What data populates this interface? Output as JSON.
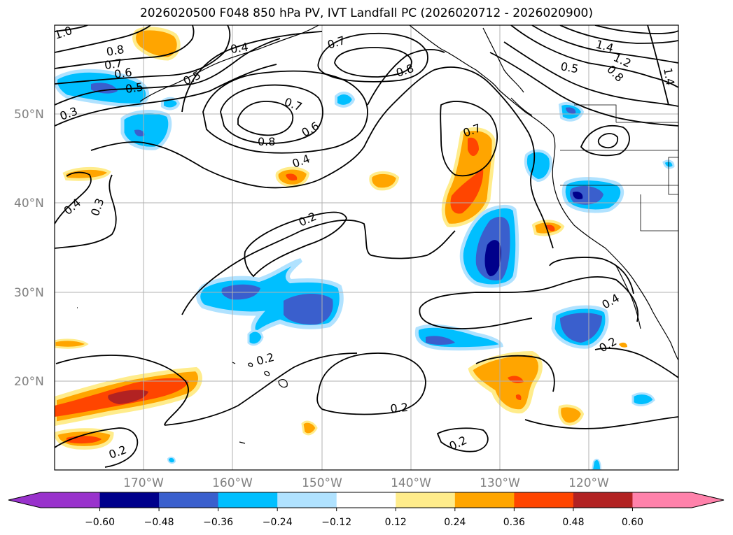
{
  "title": "2026020500 F048 850 hPa PV, IVT Landfall PC (2026020712 - 2026020900)",
  "lon_labels": [
    "170°W",
    "160°W",
    "150°W",
    "140°W",
    "130°W",
    "120°W"
  ],
  "lat_labels": [
    "50°N",
    "40°N",
    "30°N",
    "20°N"
  ],
  "colorbar": {
    "ticks": [
      "−0.60",
      "−0.48",
      "−0.36",
      "−0.24",
      "−0.12",
      "0.12",
      "0.24",
      "0.36",
      "0.48",
      "0.60"
    ],
    "colors": [
      "#9932cc",
      "#00008b",
      "#3a5fcd",
      "#00bfff",
      "#b0e2ff",
      "#ffffff",
      "#ffec8b",
      "#ffa500",
      "#ff4500",
      "#b22222",
      "#ff82ab"
    ]
  },
  "contour_labels": [
    "1.0",
    "0.8",
    "0.7",
    "0.6",
    "0.5",
    "0.3",
    "0.4",
    "0.5",
    "0.7",
    "0.8",
    "0.7",
    "0.8",
    "0.6",
    "0.4",
    "0.7",
    "1.4",
    "1.2",
    "0.8",
    "0.5",
    "1.4",
    "0.4",
    "0.3",
    "0.2",
    "0.2",
    "0.2",
    "0.2",
    "0.2",
    "0.4",
    "0.2"
  ]
}
